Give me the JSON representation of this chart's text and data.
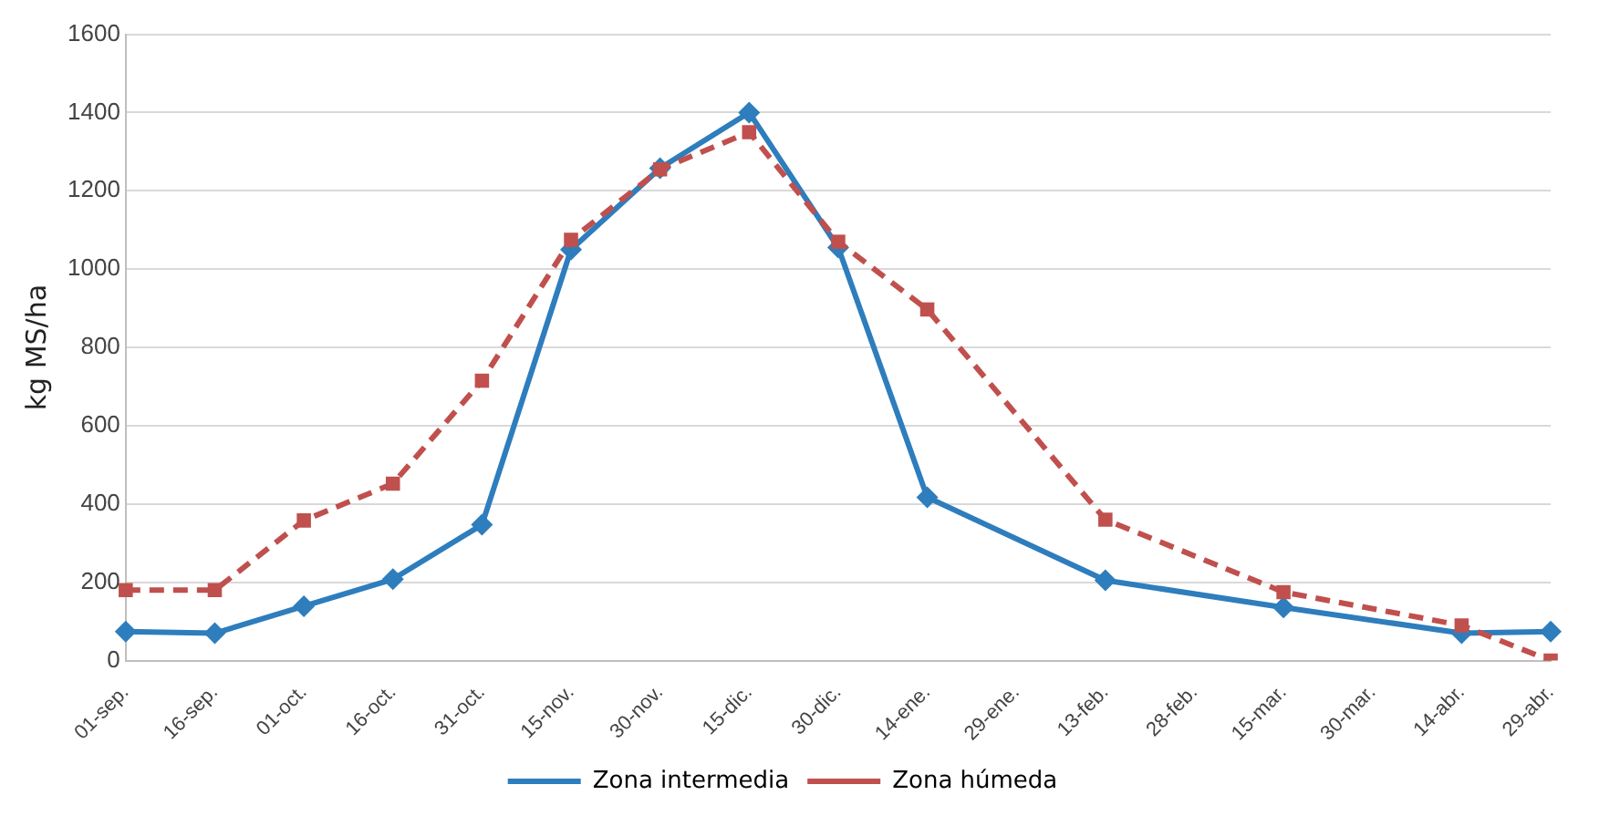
{
  "chart_data": {
    "type": "line",
    "ylabel": "kg MS/ha",
    "categories": [
      "01-sep.",
      "16-sep.",
      "01-oct.",
      "16-oct.",
      "31-oct.",
      "15-nov.",
      "30-nov.",
      "15-dic.",
      "30-dic.",
      "14-ene.",
      "29-ene.",
      "13-feb.",
      "28-feb.",
      "15-mar.",
      "30-mar.",
      "14-abr.",
      "29-abr."
    ],
    "series": [
      {
        "name": "Zona intermedia",
        "color": "#2e7dbd",
        "marker": "diamond",
        "line_style": "solid",
        "values": [
          74,
          70,
          139,
          208,
          347,
          1050,
          1258,
          1400,
          1055,
          417,
          null,
          205,
          null,
          136,
          null,
          70,
          74
        ]
      },
      {
        "name": "Zona húmeda",
        "color": "#c0504d",
        "marker": "square",
        "line_style": "dashed",
        "values": [
          180,
          180,
          358,
          452,
          715,
          1075,
          1255,
          1350,
          1070,
          897,
          null,
          360,
          null,
          175,
          null,
          90,
          0
        ]
      }
    ],
    "ylim": [
      0,
      1600
    ],
    "yticks": [
      0,
      200,
      400,
      600,
      800,
      1000,
      1200,
      1400,
      1600
    ],
    "grid": "y",
    "legend": "bottom"
  }
}
